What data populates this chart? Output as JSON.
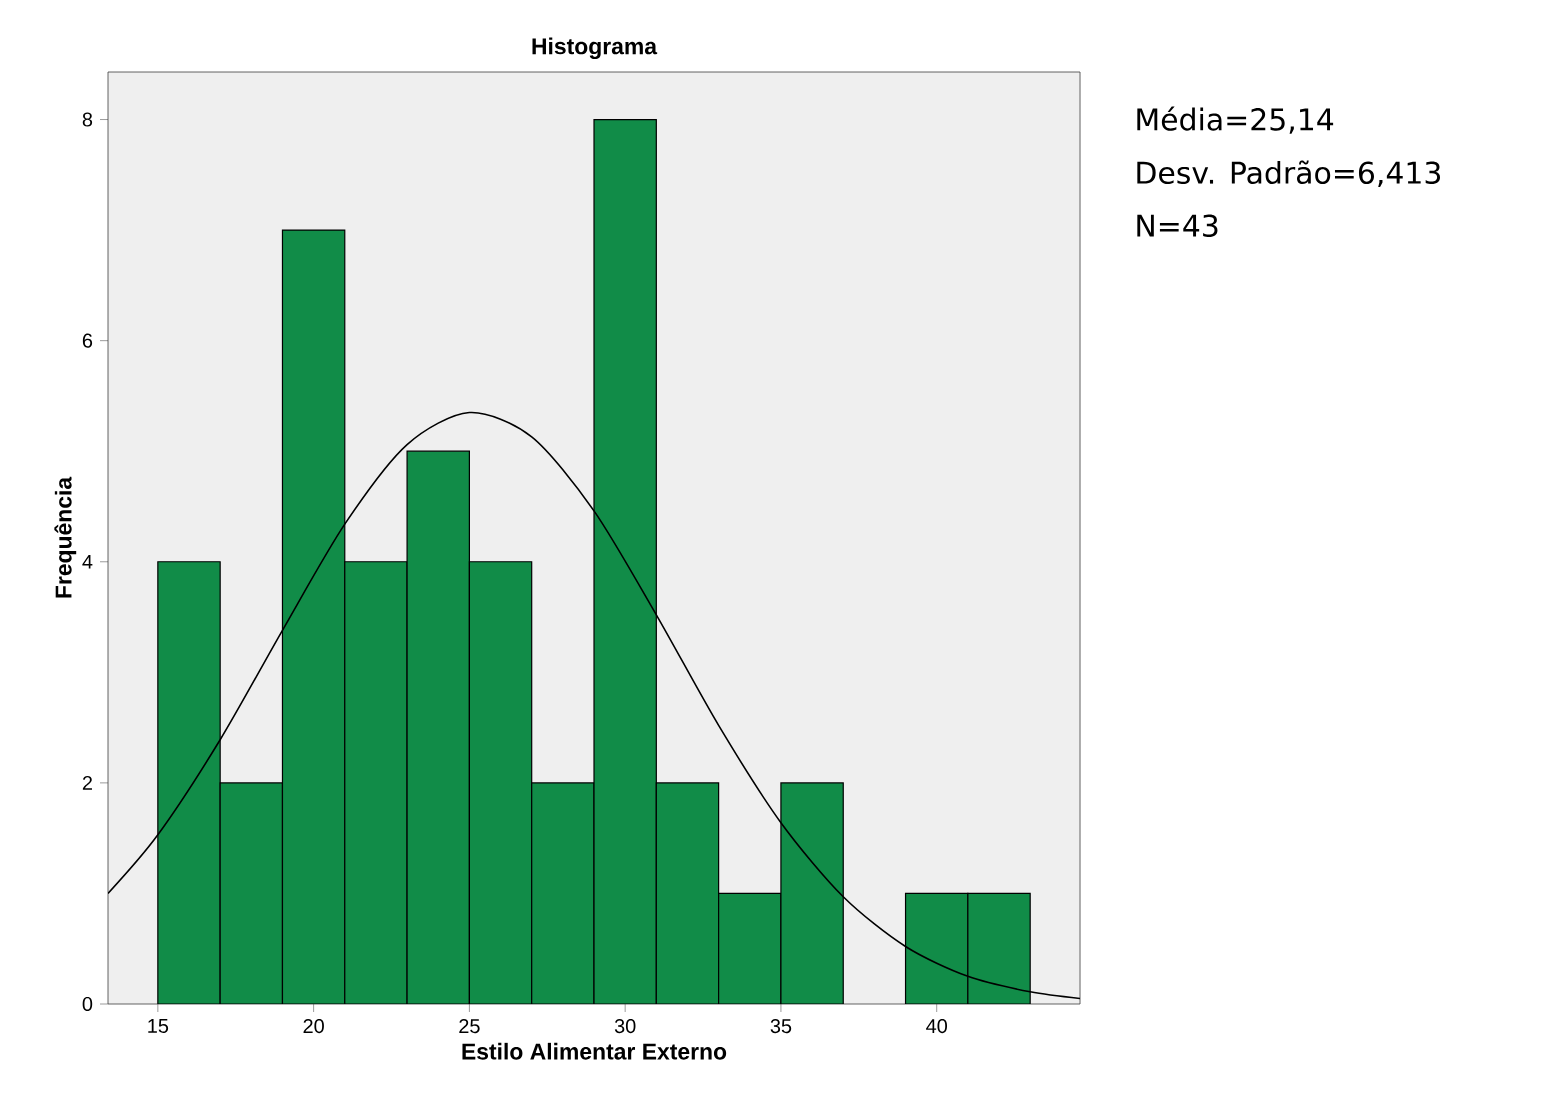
{
  "chart_data": {
    "type": "histogram",
    "title": "Histograma",
    "xlabel": "Estilo Alimentar Externo",
    "ylabel": "Frequência",
    "series": [
      {
        "color": "#118c48",
        "bins": [
          15,
          17,
          19,
          21,
          23,
          25,
          27,
          29,
          31,
          33,
          35,
          37,
          39,
          41,
          43
        ],
        "values": [
          4,
          2,
          7,
          4,
          5,
          4,
          2,
          8,
          2,
          1,
          2,
          0,
          1,
          1
        ]
      },
      {
        "type": "line",
        "color": "#000000",
        "x": [
          13.4,
          15,
          17,
          19,
          21,
          23,
          25,
          27,
          29,
          31,
          33,
          35,
          37,
          39,
          41,
          43,
          44.6
        ],
        "values": [
          1.0,
          1.53,
          2.39,
          3.38,
          4.34,
          5.06,
          5.35,
          5.13,
          4.46,
          3.52,
          2.52,
          1.64,
          0.97,
          0.52,
          0.25,
          0.11,
          0.05
        ]
      }
    ],
    "xlim": [
      13.4,
      44.6
    ],
    "ylim": [
      0,
      8.43
    ],
    "xticks": [
      15,
      20,
      25,
      30,
      35,
      40
    ],
    "yticks": [
      0,
      2,
      4,
      6,
      8
    ],
    "grid": false,
    "annotations": [
      "Média=25,14",
      "Desv. Padrão=6,413",
      "N=43"
    ]
  }
}
